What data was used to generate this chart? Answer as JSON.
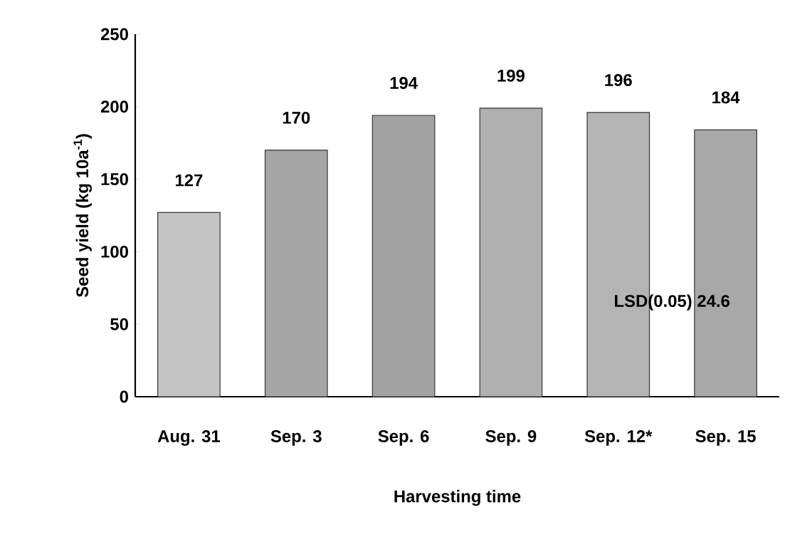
{
  "chart_data": {
    "type": "bar",
    "xlabel": "Harvesting time",
    "ylabel": "Seed yield (kg 10a$^{-1}$)",
    "categories": [
      "Aug. 31",
      "Sep. 3",
      "Sep. 6",
      "Sep. 9",
      "Sep. 12*",
      "Sep. 15"
    ],
    "values": [
      127,
      170,
      194,
      199,
      196,
      184
    ],
    "colors": [
      "#c4c4c4",
      "#a6a6a6",
      "#a2a2a2",
      "#b0b0b0",
      "#b4b4b4",
      "#a8a8a8"
    ],
    "data_labels": true,
    "ylim": [
      0,
      250
    ],
    "yticks": [
      0,
      50,
      100,
      150,
      200,
      250
    ],
    "annotations": [
      "LSD(0.05) 24.6"
    ]
  }
}
